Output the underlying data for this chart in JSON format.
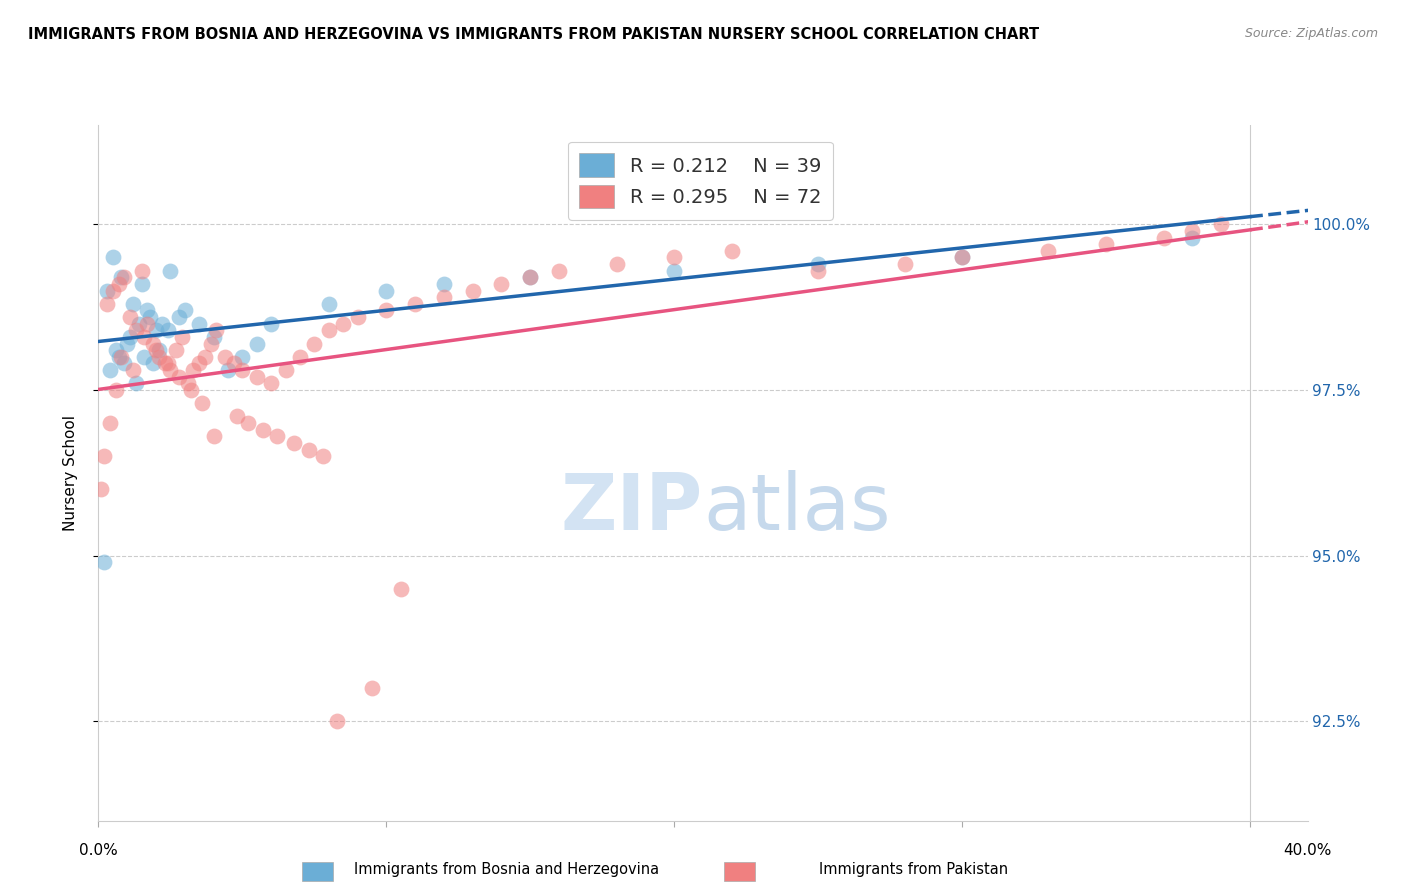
{
  "title": "IMMIGRANTS FROM BOSNIA AND HERZEGOVINA VS IMMIGRANTS FROM PAKISTAN NURSERY SCHOOL CORRELATION CHART",
  "source": "Source: ZipAtlas.com",
  "ylabel": "Nursery School",
  "yticks": [
    92.5,
    95.0,
    97.5,
    100.0
  ],
  "ytick_labels": [
    "92.5%",
    "95.0%",
    "97.5%",
    "100.0%"
  ],
  "xlim": [
    0.0,
    0.42
  ],
  "ylim": [
    91.0,
    101.5
  ],
  "r1": "0.212",
  "n1": "39",
  "r2": "0.295",
  "n2": "72",
  "color_blue": "#6baed6",
  "color_pink": "#f08080",
  "color_blue_line": "#2166ac",
  "color_pink_line": "#e75480",
  "color_axis_labels": "#2166ac",
  "scatter_blue_x": [
    0.005,
    0.008,
    0.003,
    0.012,
    0.015,
    0.018,
    0.022,
    0.025,
    0.02,
    0.017,
    0.01,
    0.007,
    0.004,
    0.006,
    0.009,
    0.011,
    0.014,
    0.016,
    0.013,
    0.019,
    0.021,
    0.024,
    0.028,
    0.03,
    0.035,
    0.04,
    0.045,
    0.05,
    0.055,
    0.06,
    0.08,
    0.1,
    0.12,
    0.15,
    0.2,
    0.25,
    0.3,
    0.38,
    0.002
  ],
  "scatter_blue_y": [
    99.5,
    99.2,
    99.0,
    98.8,
    99.1,
    98.6,
    98.5,
    99.3,
    98.4,
    98.7,
    98.2,
    98.0,
    97.8,
    98.1,
    97.9,
    98.3,
    98.5,
    98.0,
    97.6,
    97.9,
    98.1,
    98.4,
    98.6,
    98.7,
    98.5,
    98.3,
    97.8,
    98.0,
    98.2,
    98.5,
    98.8,
    99.0,
    99.1,
    99.2,
    99.3,
    99.4,
    99.5,
    99.8,
    94.9
  ],
  "scatter_pink_x": [
    0.003,
    0.005,
    0.007,
    0.009,
    0.011,
    0.013,
    0.015,
    0.017,
    0.019,
    0.021,
    0.023,
    0.025,
    0.027,
    0.029,
    0.031,
    0.033,
    0.035,
    0.037,
    0.039,
    0.041,
    0.044,
    0.047,
    0.05,
    0.055,
    0.06,
    0.065,
    0.07,
    0.075,
    0.08,
    0.085,
    0.09,
    0.1,
    0.11,
    0.12,
    0.13,
    0.14,
    0.15,
    0.16,
    0.18,
    0.2,
    0.22,
    0.25,
    0.28,
    0.3,
    0.33,
    0.35,
    0.37,
    0.38,
    0.39,
    0.04,
    0.008,
    0.006,
    0.004,
    0.002,
    0.001,
    0.016,
    0.012,
    0.02,
    0.024,
    0.028,
    0.032,
    0.036,
    0.048,
    0.052,
    0.057,
    0.062,
    0.068,
    0.073,
    0.078,
    0.083,
    0.095,
    0.105
  ],
  "scatter_pink_y": [
    98.8,
    99.0,
    99.1,
    99.2,
    98.6,
    98.4,
    99.3,
    98.5,
    98.2,
    98.0,
    97.9,
    97.8,
    98.1,
    98.3,
    97.6,
    97.8,
    97.9,
    98.0,
    98.2,
    98.4,
    98.0,
    97.9,
    97.8,
    97.7,
    97.6,
    97.8,
    98.0,
    98.2,
    98.4,
    98.5,
    98.6,
    98.7,
    98.8,
    98.9,
    99.0,
    99.1,
    99.2,
    99.3,
    99.4,
    99.5,
    99.6,
    99.3,
    99.4,
    99.5,
    99.6,
    99.7,
    99.8,
    99.9,
    100.0,
    96.8,
    98.0,
    97.5,
    97.0,
    96.5,
    96.0,
    98.3,
    97.8,
    98.1,
    97.9,
    97.7,
    97.5,
    97.3,
    97.1,
    97.0,
    96.9,
    96.8,
    96.7,
    96.6,
    96.5,
    92.5,
    93.0,
    94.5
  ],
  "legend_label1": "Immigrants from Bosnia and Herzegovina",
  "legend_label2": "Immigrants from Pakistan"
}
